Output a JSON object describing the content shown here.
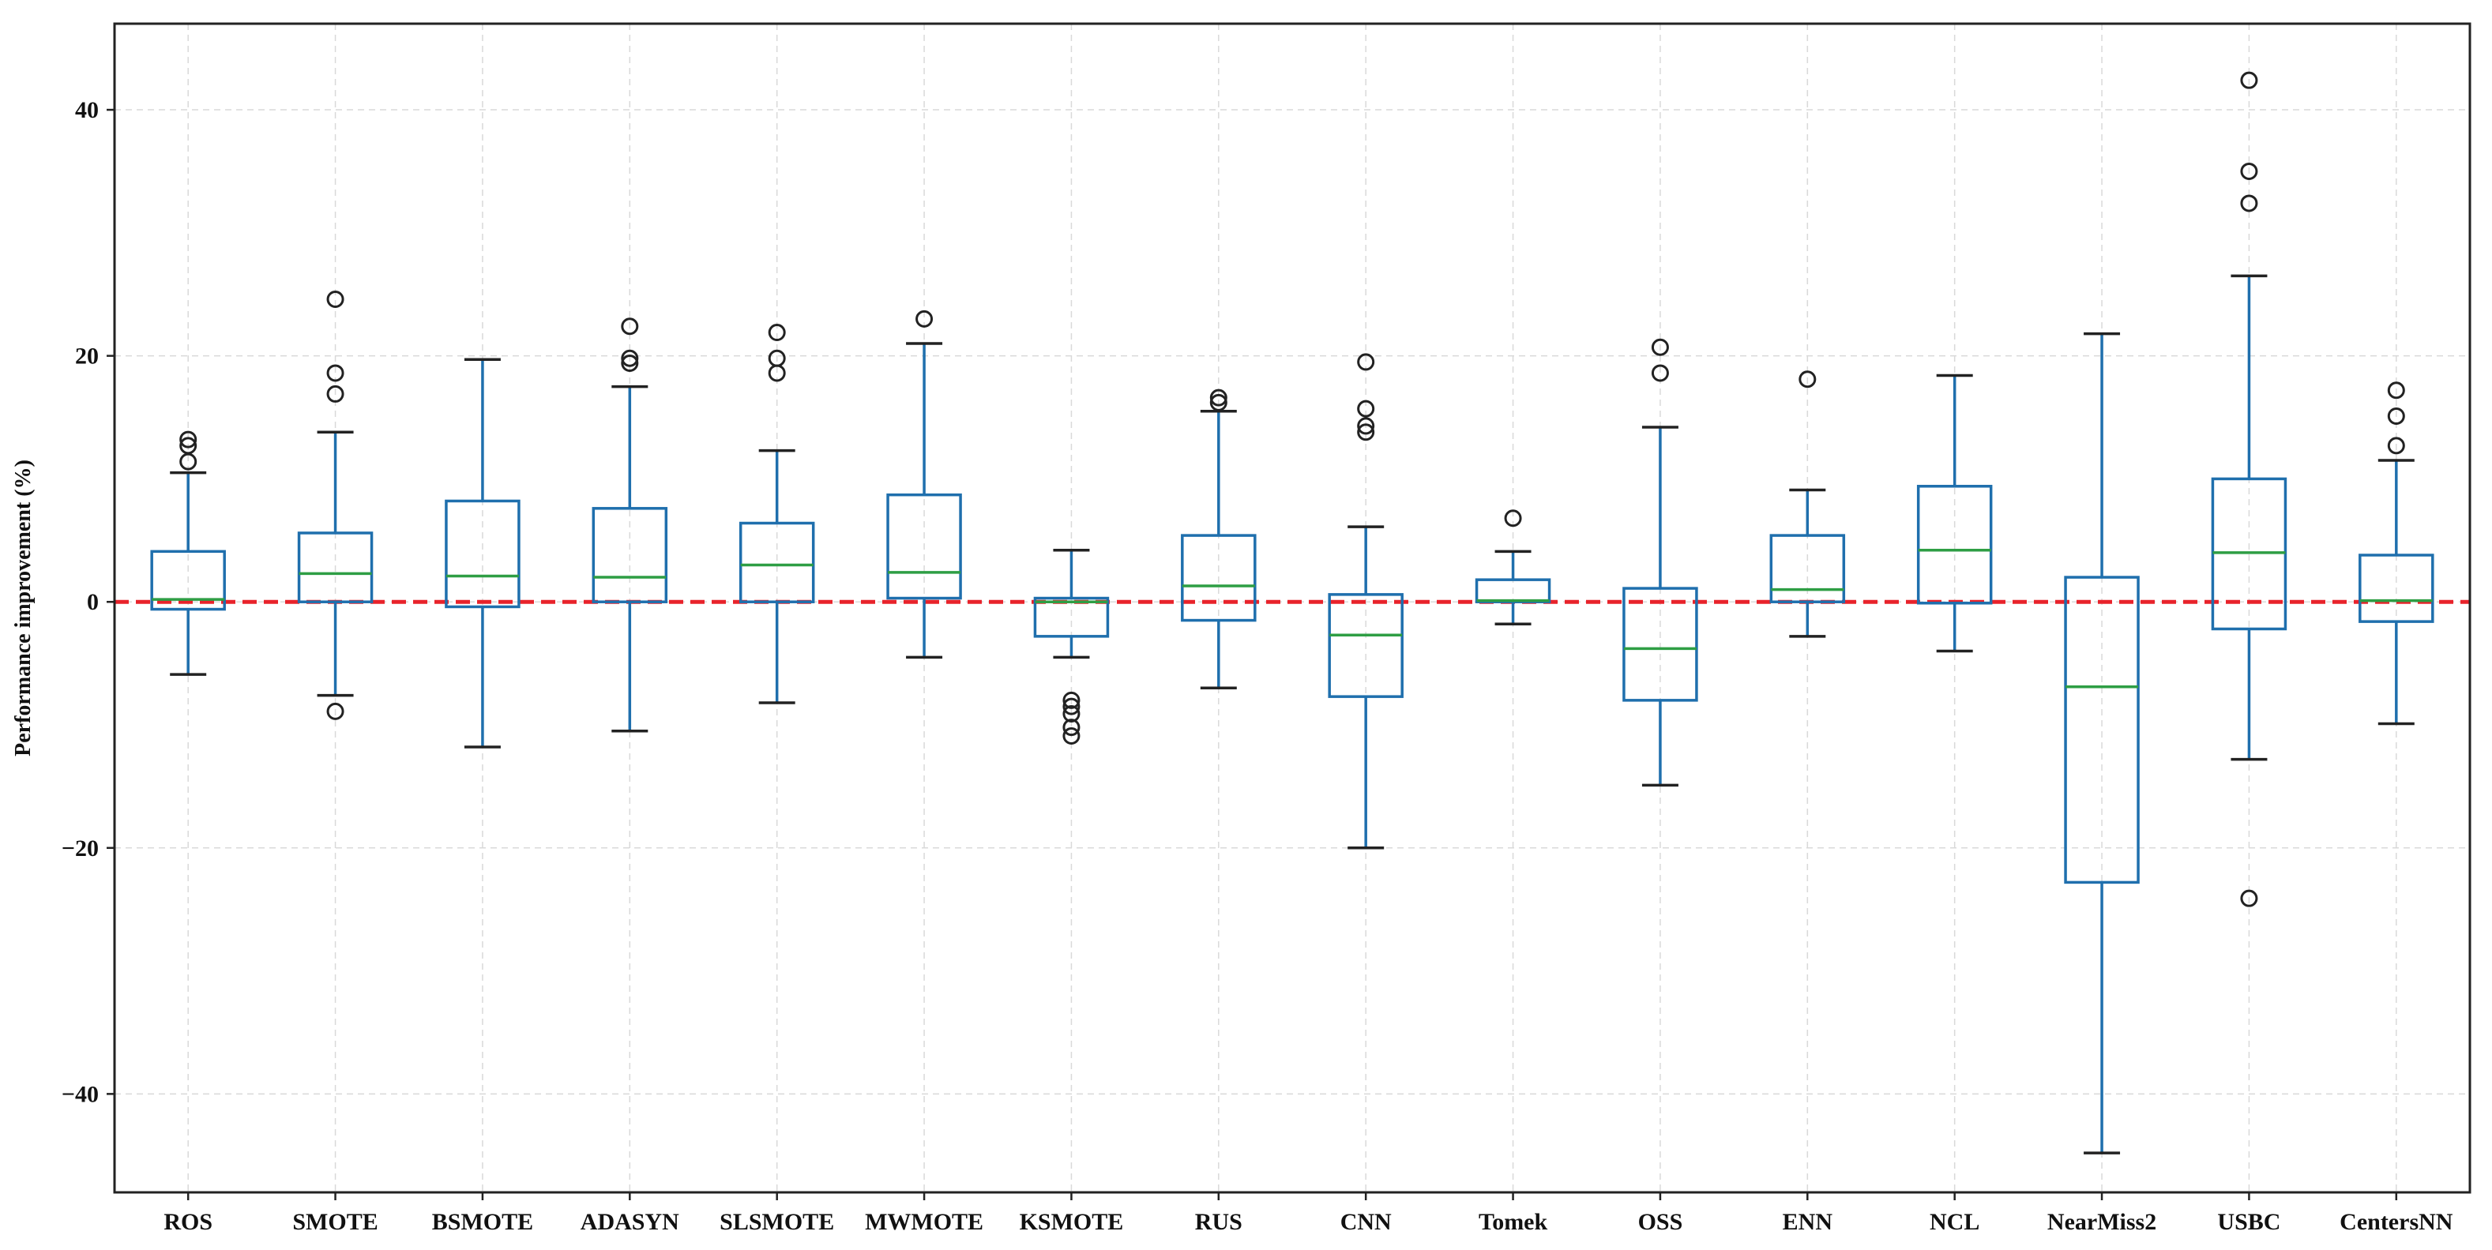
{
  "chart_data": {
    "type": "box",
    "title": "",
    "xlabel": "",
    "ylabel": "Performance improvement (%)",
    "ylim": [
      -48,
      47
    ],
    "yticks": [
      -40,
      -20,
      0,
      20,
      40
    ],
    "ytick_labels": [
      "−40",
      "−20",
      "0",
      "20",
      "40"
    ],
    "grid": true,
    "reference_line": {
      "y": 0,
      "style": "dashed",
      "color": "#e8232b"
    },
    "colors": {
      "box": "#1f6fad",
      "median": "#2e9e44",
      "whisker_cap": "#222222",
      "outlier": "#222222",
      "grid": "#d9d9d9"
    },
    "categories": [
      "ROS",
      "SMOTE",
      "BSMOTE",
      "ADASYN",
      "SLSMOTE",
      "MWMOTE",
      "KSMOTE",
      "RUS",
      "CNN",
      "Tomek",
      "OSS",
      "ENN",
      "NCL",
      "NearMiss2",
      "USBC",
      "CentersNN"
    ],
    "boxes": [
      {
        "whislo": -5.9,
        "q1": -0.6,
        "med": 0.2,
        "q3": 4.1,
        "whishi": 10.5,
        "fliers": [
          11.4,
          12.7,
          13.2
        ]
      },
      {
        "whislo": -7.6,
        "q1": 0.0,
        "med": 2.3,
        "q3": 5.6,
        "whishi": 13.8,
        "fliers": [
          -8.9,
          16.9,
          18.6,
          24.6
        ]
      },
      {
        "whislo": -11.8,
        "q1": -0.4,
        "med": 2.1,
        "q3": 8.2,
        "whishi": 19.7,
        "fliers": []
      },
      {
        "whislo": -10.5,
        "q1": 0.0,
        "med": 2.0,
        "q3": 7.6,
        "whishi": 17.5,
        "fliers": [
          19.4,
          19.8,
          22.4
        ]
      },
      {
        "whislo": -8.2,
        "q1": 0.0,
        "med": 3.0,
        "q3": 6.4,
        "whishi": 12.3,
        "fliers": [
          18.6,
          19.8,
          21.9
        ]
      },
      {
        "whislo": -4.5,
        "q1": 0.3,
        "med": 2.4,
        "q3": 8.7,
        "whishi": 21.0,
        "fliers": [
          23.0
        ]
      },
      {
        "whislo": -4.5,
        "q1": -2.8,
        "med": 0.0,
        "q3": 0.3,
        "whishi": 4.2,
        "fliers": [
          -8.0,
          -8.5,
          -9.1,
          -10.2,
          -10.9
        ]
      },
      {
        "whislo": -7.0,
        "q1": -1.5,
        "med": 1.3,
        "q3": 5.4,
        "whishi": 15.5,
        "fliers": [
          16.2,
          16.6
        ]
      },
      {
        "whislo": -20.0,
        "q1": -7.7,
        "med": -2.7,
        "q3": 0.6,
        "whishi": 6.1,
        "fliers": [
          13.8,
          14.3,
          15.7,
          19.5
        ]
      },
      {
        "whislo": -1.8,
        "q1": 0.0,
        "med": 0.1,
        "q3": 1.8,
        "whishi": 4.1,
        "fliers": [
          6.8
        ]
      },
      {
        "whislo": -14.9,
        "q1": -8.0,
        "med": -3.8,
        "q3": 1.1,
        "whishi": 14.2,
        "fliers": [
          18.6,
          20.7
        ]
      },
      {
        "whislo": -2.8,
        "q1": 0.0,
        "med": 1.0,
        "q3": 5.4,
        "whishi": 9.1,
        "fliers": [
          18.1
        ]
      },
      {
        "whislo": -4.0,
        "q1": -0.1,
        "med": 4.2,
        "q3": 9.4,
        "whishi": 18.4,
        "fliers": []
      },
      {
        "whislo": -44.8,
        "q1": -22.8,
        "med": -6.9,
        "q3": 2.0,
        "whishi": 21.8,
        "fliers": []
      },
      {
        "whislo": -12.8,
        "q1": -2.2,
        "med": 4.0,
        "q3": 10.0,
        "whishi": 26.5,
        "fliers": [
          -24.1,
          32.4,
          35.0,
          42.4
        ]
      },
      {
        "whislo": -9.9,
        "q1": -1.6,
        "med": 0.1,
        "q3": 3.8,
        "whishi": 11.5,
        "fliers": [
          12.7,
          15.1,
          17.2
        ]
      }
    ]
  }
}
